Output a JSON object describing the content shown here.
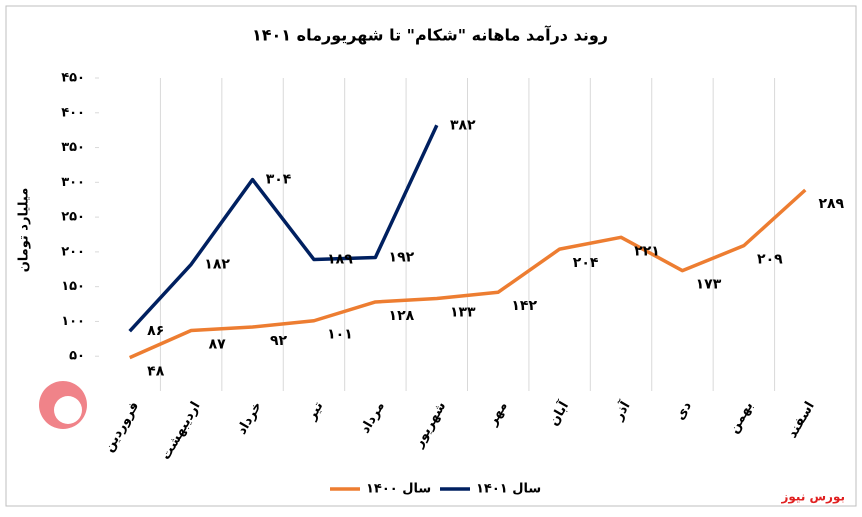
{
  "chart_data": {
    "type": "line",
    "title": "روند درآمد ماهانه \"شکام\" تا شهریورماه ۱۴۰۱",
    "y_label": "میلیارد تومان",
    "source": "بورس نیوز",
    "categories": [
      "فروردین",
      "اردیبهشت",
      "خرداد",
      "تیر",
      "مرداد",
      "شهریور",
      "مهر",
      "آبان",
      "آذر",
      "دی",
      "بهمن",
      "اسفند"
    ],
    "series": [
      {
        "name": "سال ۱۴۰۰",
        "color": "#ed7d31",
        "values": [
          48,
          87,
          92,
          101,
          128,
          133,
          142,
          204,
          221,
          173,
          209,
          289
        ],
        "value_labels": [
          "۴۸",
          "۸۷",
          "۹۲",
          "۱۰۱",
          "۱۲۸",
          "۱۳۳",
          "۱۴۲",
          "۲۰۴",
          "۲۲۱",
          "۱۷۳",
          "۲۰۹",
          "۲۸۹"
        ]
      },
      {
        "name": "سال ۱۴۰۱",
        "color": "#002060",
        "values": [
          86,
          182,
          304,
          189,
          192,
          382,
          null,
          null,
          null,
          null,
          null,
          null
        ],
        "value_labels": [
          "۸۶",
          "۱۸۲",
          "۳۰۴",
          "۱۸۹",
          "۱۹۲",
          "۳۸۲",
          null,
          null,
          null,
          null,
          null,
          null
        ]
      }
    ],
    "ylim": [
      0,
      450
    ],
    "yticks": [
      {
        "value": 50,
        "label": "۵۰"
      },
      {
        "value": 100,
        "label": "۱۰۰"
      },
      {
        "value": 150,
        "label": "۱۵۰"
      },
      {
        "value": 200,
        "label": "۲۰۰"
      },
      {
        "value": 250,
        "label": "۲۵۰"
      },
      {
        "value": 300,
        "label": "۳۰۰"
      },
      {
        "value": 350,
        "label": "۳۵۰"
      },
      {
        "value": 400,
        "label": "۴۰۰"
      },
      {
        "value": 450,
        "label": "۴۵۰"
      }
    ],
    "grid": true
  }
}
